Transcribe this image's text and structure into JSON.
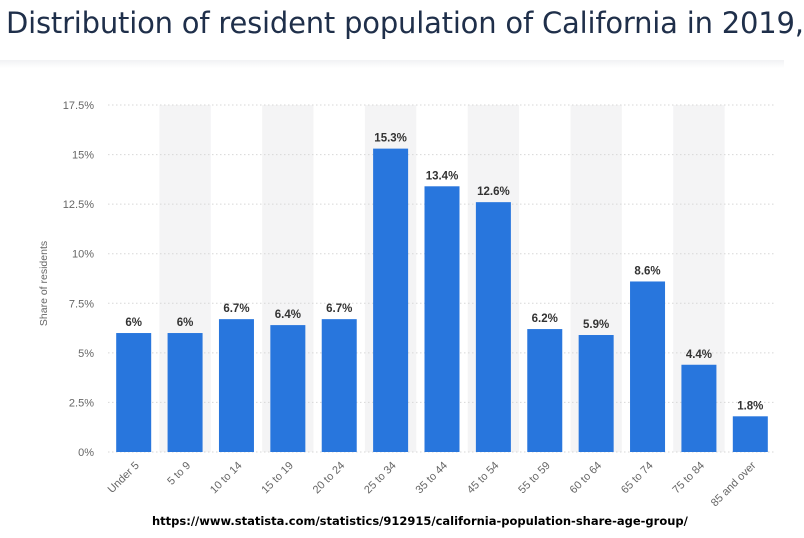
{
  "title": "Distribution of resident population of California in 2019,",
  "source_url": "https://www.statista.com/statistics/912915/california-population-share-age-group/",
  "chart_data": {
    "type": "bar",
    "title": "Distribution of resident population of California in 2019,",
    "xlabel": "",
    "ylabel": "Share of residents",
    "ylim": [
      0,
      17.5
    ],
    "yticks": [
      0,
      2.5,
      5,
      7.5,
      10,
      12.5,
      15,
      17.5
    ],
    "ytick_labels": [
      "0%",
      "2.5%",
      "5%",
      "7.5%",
      "10%",
      "12.5%",
      "15%",
      "17.5%"
    ],
    "categories": [
      "Under 5",
      "5 to 9",
      "10 to 14",
      "15 to 19",
      "20 to 24",
      "25 to 34",
      "35 to 44",
      "45 to 54",
      "55 to 59",
      "60 to 64",
      "65 to 74",
      "75 to 84",
      "85 and over"
    ],
    "values": [
      6,
      6,
      6.7,
      6.4,
      6.7,
      15.3,
      13.4,
      12.6,
      6.2,
      5.9,
      8.6,
      4.4,
      1.8
    ],
    "value_labels": [
      "6%",
      "6%",
      "6.7%",
      "6.4%",
      "6.7%",
      "15.3%",
      "13.4%",
      "12.6%",
      "6.2%",
      "5.9%",
      "8.6%",
      "4.4%",
      "1.8%"
    ],
    "grid": true,
    "alternating_column_shading": true,
    "legend": "none",
    "colors": {
      "bar": "#2876dd",
      "grid": "#d7d7d7",
      "shade": "#f4f4f5",
      "axis_text": "#666666",
      "value_text": "#333333",
      "title": "#1f2f4a"
    }
  }
}
